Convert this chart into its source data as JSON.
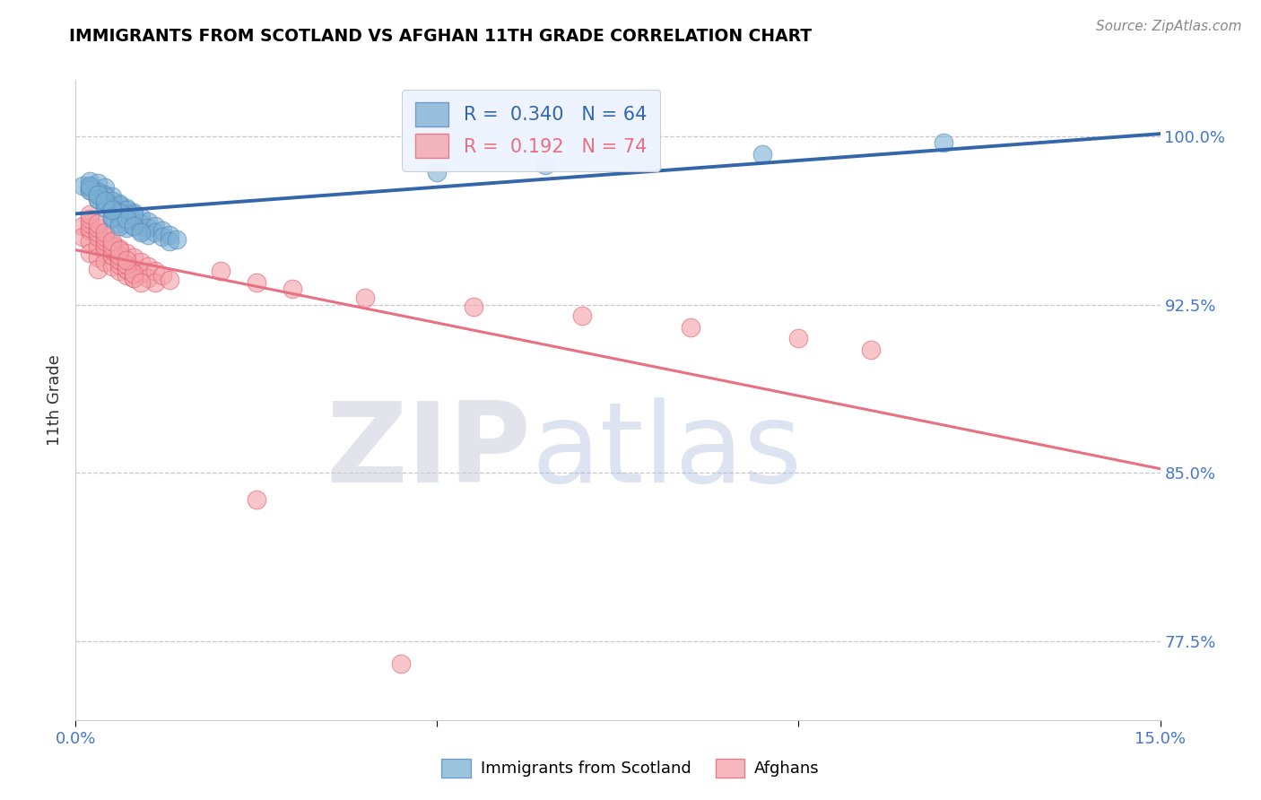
{
  "title": "IMMIGRANTS FROM SCOTLAND VS AFGHAN 11TH GRADE CORRELATION CHART",
  "source": "Source: ZipAtlas.com",
  "ytick_labels": [
    "77.5%",
    "85.0%",
    "92.5%",
    "100.0%"
  ],
  "ytick_values": [
    0.775,
    0.85,
    0.925,
    1.0
  ],
  "xlim": [
    0.0,
    0.15
  ],
  "ylim": [
    0.74,
    1.025
  ],
  "ylabel": "11th Grade",
  "legend_blue_r": "R =  0.340",
  "legend_blue_n": "N = 64",
  "legend_pink_r": "R =  0.192",
  "legend_pink_n": "N = 74",
  "blue_color": "#7BAFD4",
  "pink_color": "#F4A0A8",
  "line_blue_color": "#3366AA",
  "line_pink_color": "#E87080",
  "blue_scatter_edge": "#5588BB",
  "pink_scatter_edge": "#E06070",
  "scotland_x": [
    0.001,
    0.002,
    0.002,
    0.003,
    0.003,
    0.003,
    0.004,
    0.004,
    0.004,
    0.005,
    0.005,
    0.005,
    0.005,
    0.006,
    0.006,
    0.006,
    0.006,
    0.007,
    0.007,
    0.007,
    0.007,
    0.008,
    0.008,
    0.008,
    0.009,
    0.009,
    0.009,
    0.01,
    0.01,
    0.01,
    0.011,
    0.011,
    0.012,
    0.012,
    0.013,
    0.013,
    0.014,
    0.003,
    0.004,
    0.005,
    0.006,
    0.007,
    0.008,
    0.002,
    0.003,
    0.004,
    0.005,
    0.006,
    0.002,
    0.003,
    0.004,
    0.005,
    0.006,
    0.007,
    0.008,
    0.009,
    0.002,
    0.003,
    0.004,
    0.005,
    0.05,
    0.065,
    0.095,
    0.12
  ],
  "scotland_y": [
    0.978,
    0.98,
    0.976,
    0.975,
    0.972,
    0.979,
    0.977,
    0.974,
    0.971,
    0.973,
    0.969,
    0.966,
    0.963,
    0.97,
    0.967,
    0.964,
    0.961,
    0.968,
    0.965,
    0.962,
    0.959,
    0.966,
    0.963,
    0.96,
    0.964,
    0.961,
    0.958,
    0.962,
    0.959,
    0.956,
    0.96,
    0.957,
    0.958,
    0.955,
    0.956,
    0.953,
    0.954,
    0.974,
    0.973,
    0.971,
    0.969,
    0.967,
    0.965,
    0.977,
    0.975,
    0.97,
    0.968,
    0.966,
    0.976,
    0.972,
    0.968,
    0.964,
    0.96,
    0.963,
    0.96,
    0.957,
    0.978,
    0.974,
    0.971,
    0.967,
    0.984,
    0.987,
    0.992,
    0.997
  ],
  "afghan_x": [
    0.001,
    0.001,
    0.002,
    0.002,
    0.002,
    0.003,
    0.003,
    0.003,
    0.003,
    0.004,
    0.004,
    0.004,
    0.005,
    0.005,
    0.005,
    0.006,
    0.006,
    0.006,
    0.007,
    0.007,
    0.007,
    0.008,
    0.008,
    0.009,
    0.009,
    0.01,
    0.01,
    0.011,
    0.011,
    0.012,
    0.013,
    0.003,
    0.004,
    0.005,
    0.006,
    0.007,
    0.008,
    0.002,
    0.003,
    0.004,
    0.005,
    0.006,
    0.002,
    0.003,
    0.004,
    0.005,
    0.006,
    0.007,
    0.008,
    0.002,
    0.003,
    0.004,
    0.005,
    0.006,
    0.007,
    0.008,
    0.009,
    0.002,
    0.003,
    0.004,
    0.005,
    0.006,
    0.007,
    0.02,
    0.025,
    0.03,
    0.04,
    0.055,
    0.07,
    0.085,
    0.1,
    0.11,
    0.025,
    0.045
  ],
  "afghan_y": [
    0.96,
    0.955,
    0.958,
    0.953,
    0.948,
    0.956,
    0.951,
    0.946,
    0.941,
    0.954,
    0.949,
    0.944,
    0.952,
    0.947,
    0.942,
    0.95,
    0.945,
    0.94,
    0.948,
    0.943,
    0.938,
    0.946,
    0.941,
    0.944,
    0.939,
    0.942,
    0.937,
    0.94,
    0.935,
    0.938,
    0.936,
    0.957,
    0.953,
    0.949,
    0.945,
    0.941,
    0.937,
    0.959,
    0.955,
    0.951,
    0.947,
    0.943,
    0.961,
    0.957,
    0.953,
    0.949,
    0.945,
    0.941,
    0.937,
    0.963,
    0.959,
    0.955,
    0.951,
    0.947,
    0.943,
    0.939,
    0.935,
    0.965,
    0.961,
    0.957,
    0.953,
    0.949,
    0.945,
    0.94,
    0.935,
    0.932,
    0.928,
    0.924,
    0.92,
    0.915,
    0.91,
    0.905,
    0.838,
    0.765
  ]
}
